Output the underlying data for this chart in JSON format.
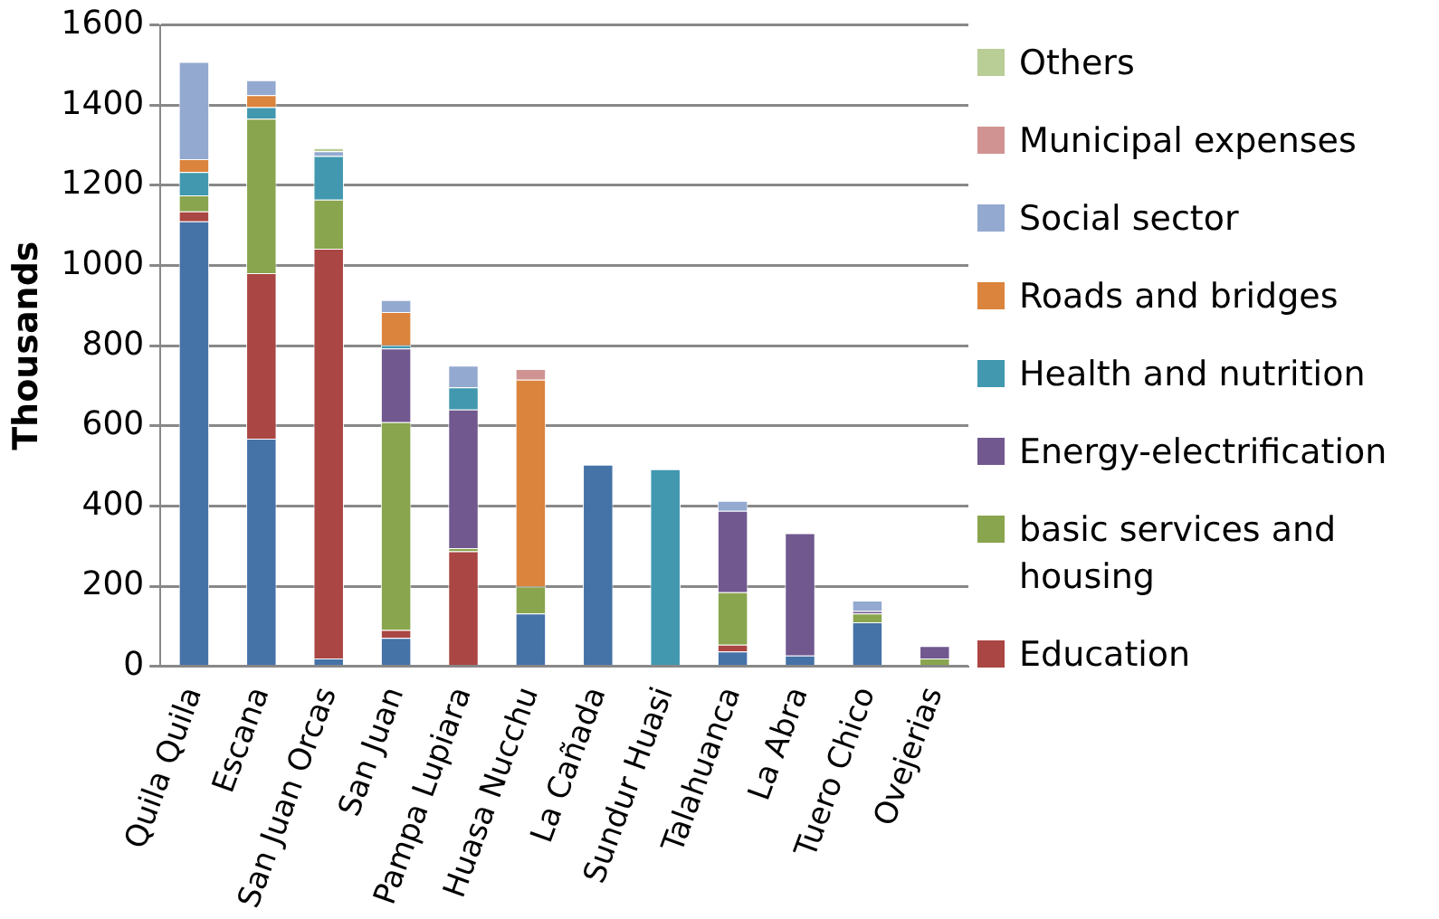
{
  "chart_data": {
    "type": "bar",
    "stacked": true,
    "ylabel": "Thousands",
    "categories": [
      "Quila Quila",
      "Escana",
      "San Juan Orcas",
      "San Juan",
      "Pampa Lupiara",
      "Huasa Nucchu",
      "La Cañada",
      "Sundur Huasi",
      "Talahuanca",
      "La Abra",
      "Tuero Chico",
      "Ovejerias"
    ],
    "series": [
      {
        "color": "#4572a7",
        "values": [
          1110,
          568,
          20,
          71,
          0,
          132,
          503,
          0,
          37,
          27,
          110,
          0
        ]
      },
      {
        "name": "Education",
        "color": "#aa4643",
        "values": [
          25,
          413,
          1022,
          20,
          287,
          0,
          0,
          0,
          17,
          0,
          0,
          0
        ]
      },
      {
        "name": "basic services and housing",
        "color": "#89a54e",
        "values": [
          40,
          385,
          122,
          518,
          8,
          67,
          0,
          0,
          131,
          0,
          22,
          20
        ]
      },
      {
        "name": "Energy-electrification",
        "color": "#71588f",
        "values": [
          0,
          0,
          0,
          184,
          346,
          0,
          0,
          0,
          203,
          305,
          6,
          31
        ]
      },
      {
        "name": "Health and nutrition",
        "color": "#4198af",
        "values": [
          58,
          29,
          109,
          8,
          55,
          0,
          0,
          492,
          0,
          0,
          0,
          0
        ]
      },
      {
        "name": "Roads and bridges",
        "color": "#db843d",
        "values": [
          32,
          30,
          0,
          83,
          0,
          516,
          0,
          0,
          0,
          0,
          0,
          0
        ]
      },
      {
        "name": "Social sector",
        "color": "#93a9cf",
        "values": [
          243,
          37,
          12,
          30,
          54,
          0,
          0,
          0,
          25,
          0,
          26,
          0
        ]
      },
      {
        "name": "Municipal expenses",
        "color": "#d19392",
        "values": [
          0,
          0,
          0,
          0,
          0,
          27,
          0,
          0,
          0,
          0,
          0,
          0
        ]
      },
      {
        "name": "Others",
        "color": "#b9cd96",
        "values": [
          0,
          0,
          8,
          0,
          0,
          0,
          0,
          0,
          0,
          0,
          0,
          0
        ]
      }
    ],
    "ylim": [
      0,
      1600
    ],
    "yticks": [
      0,
      200,
      400,
      600,
      800,
      1000,
      1200,
      1400,
      1600
    ],
    "grid": "y",
    "legend": "right"
  }
}
